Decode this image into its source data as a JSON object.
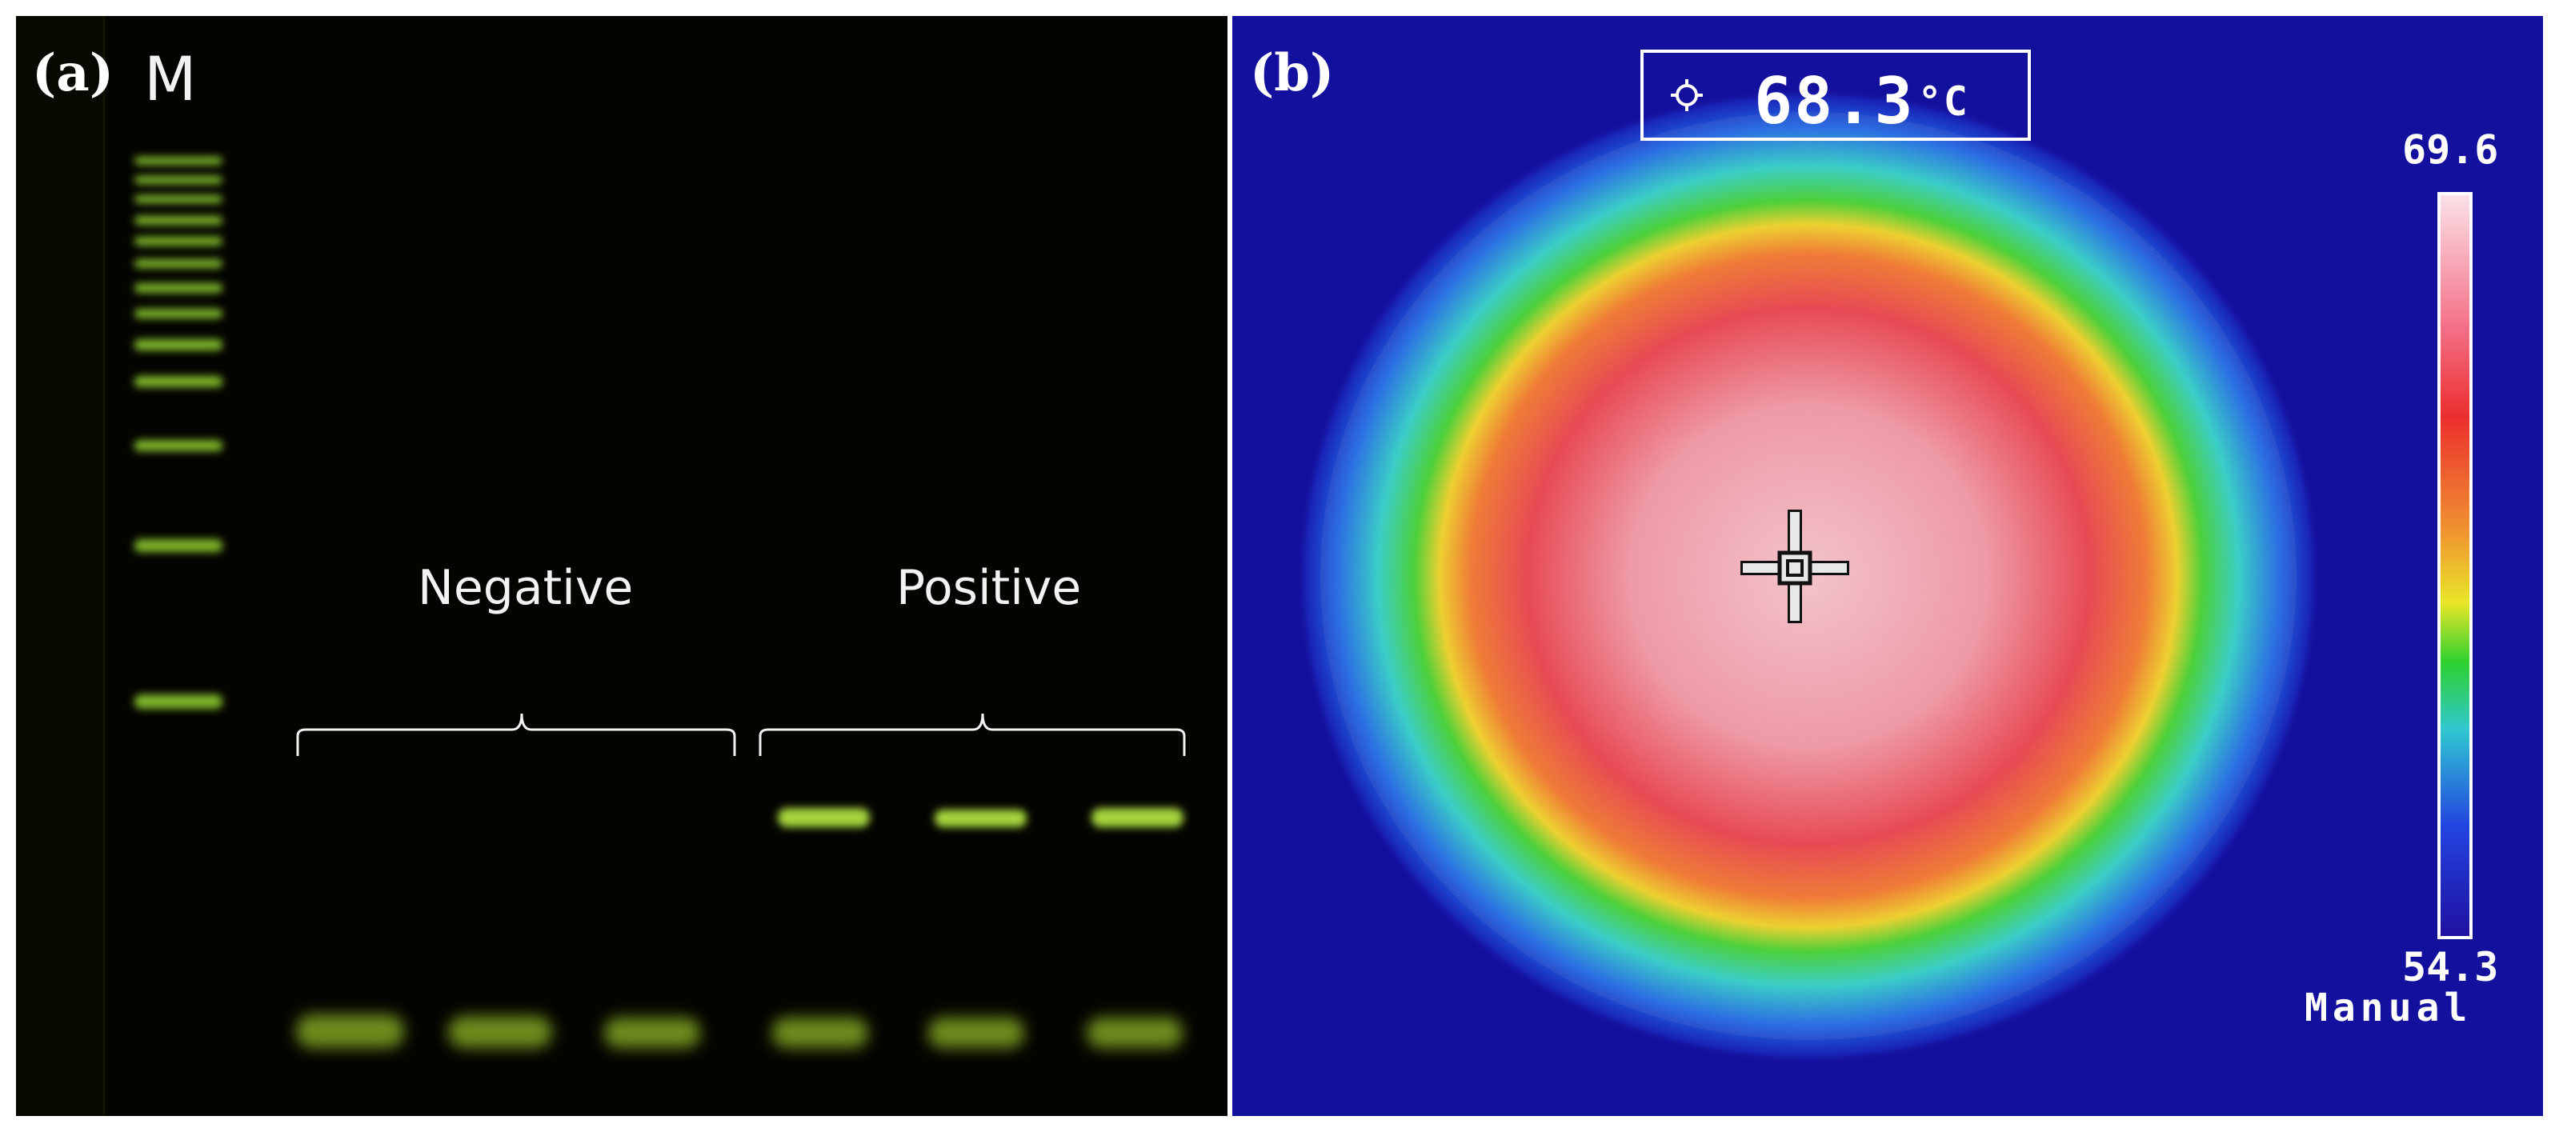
{
  "panel_a": {
    "label": "(a)",
    "marker_lane_label": "M",
    "groups": [
      {
        "label": "Negative",
        "lanes": 3
      },
      {
        "label": "Positive",
        "lanes": 3
      }
    ],
    "colors": {
      "background": "#030400",
      "band": "#9fd03a",
      "text": "#f2f2f2"
    }
  },
  "panel_b": {
    "label": "(b)",
    "spot_temperature": "68.3",
    "temperature_unit": "°C",
    "scale_max": "69.6",
    "scale_min": "54.3",
    "mode": "Manual",
    "colors": {
      "background": "#14109e",
      "text": "#ffffff"
    }
  }
}
